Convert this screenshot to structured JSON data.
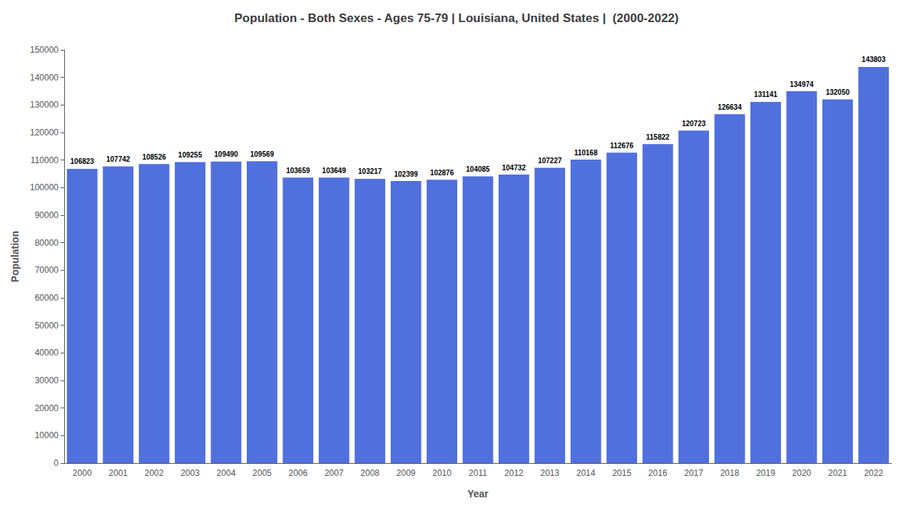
{
  "chart_data": {
    "type": "bar",
    "title": "Population - Both Sexes - Ages 75-79 | Louisiana, United States |  (2000-2022)",
    "xlabel": "Year",
    "ylabel": "Population",
    "categories": [
      "2000",
      "2001",
      "2002",
      "2003",
      "2004",
      "2005",
      "2006",
      "2007",
      "2008",
      "2009",
      "2010",
      "2011",
      "2012",
      "2013",
      "2014",
      "2015",
      "2016",
      "2017",
      "2018",
      "2019",
      "2020",
      "2021",
      "2022"
    ],
    "values": [
      106823,
      107742,
      108526,
      109255,
      109490,
      109569,
      103659,
      103649,
      103217,
      102399,
      102876,
      104085,
      104732,
      107227,
      110168,
      112676,
      115822,
      120723,
      126634,
      131141,
      134974,
      132050,
      143803
    ],
    "ylim": [
      0,
      150000
    ],
    "yticks": [
      0,
      10000,
      20000,
      30000,
      40000,
      50000,
      60000,
      70000,
      80000,
      90000,
      100000,
      110000,
      120000,
      130000,
      140000,
      150000
    ],
    "grid": false,
    "data_labels": true
  }
}
